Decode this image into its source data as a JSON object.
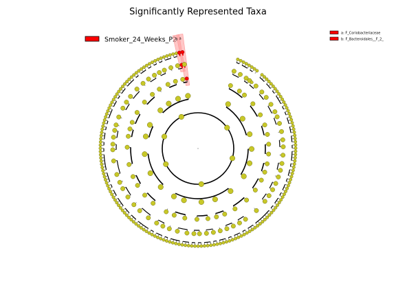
{
  "chart_data": {
    "type": "cladogram",
    "title": "Significantly Represented Taxa",
    "groups": [
      {
        "name": "Smoker_24_Weeks_P2",
        "color": "#ff0000"
      }
    ],
    "clades": [
      {
        "letter": "a",
        "label": "a: F_Coriobacteriaceae",
        "color": "#ff0000"
      },
      {
        "letter": "b",
        "label": "b: F_Bacteroidales__F_2_",
        "color": "#ff0000"
      }
    ],
    "colors": {
      "node": "#c8c828",
      "node_edge": "#555500",
      "highlight": "#ff0000",
      "shade": "#ff9999",
      "line": "#000000"
    },
    "layers": 6,
    "tree": [
      {
        "children": [
          {
            "children": [
              {
                "children": [
                  {
                    "children": [
                      {},
                      {}
                    ]
                  },
                  {
                    "children": [
                      {},
                      {},
                      {}
                    ]
                  }
                ]
              },
              {
                "children": [
                  {
                    "children": [
                      {},
                      {}
                    ]
                  },
                  {
                    "children": [
                      {}
                    ]
                  }
                ]
              },
              {
                "children": [
                  {},
                  {
                    "children": [
                      {},
                      {},
                      {}
                    ]
                  }
                ]
              }
            ]
          },
          {
            "children": [
              {
                "children": [
                  {
                    "children": [
                      {},
                      {},
                      {}
                    ]
                  },
                  {
                    "children": [
                      {},
                      {}
                    ]
                  }
                ]
              },
              {
                "children": [
                  {
                    "children": [
                      {},
                      {},
                      {},
                      {}
                    ]
                  },
                  {
                    "children": [
                      {},
                      {}
                    ]
                  }
                ]
              }
            ]
          },
          {
            "children": [
              {
                "children": [
                  {
                    "children": [
                      {},
                      {}
                    ]
                  },
                  {
                    "children": [
                      {},
                      {},
                      {}
                    ]
                  }
                ]
              },
              {
                "children": [
                  {
                    "children": [
                      {},
                      {},
                      {}
                    ]
                  }
                ]
              }
            ]
          }
        ]
      },
      {
        "children": [
          {
            "children": [
              {
                "children": [
                  {
                    "children": [
                      {},
                      {},
                      {}
                    ]
                  },
                  {
                    "children": [
                      {},
                      {}
                    ]
                  }
                ]
              },
              {
                "children": [
                  {
                    "children": [
                      {},
                      {},
                      {},
                      {}
                    ]
                  }
                ]
              }
            ]
          },
          {
            "children": [
              {
                "children": [
                  {
                    "children": [
                      {},
                      {}
                    ]
                  },
                  {
                    "children": [
                      {},
                      {},
                      {}
                    ]
                  }
                ]
              },
              {
                "children": [
                  {
                    "children": [
                      {},
                      {}
                    ]
                  }
                ]
              }
            ]
          },
          {
            "children": [
              {
                "children": [
                  {
                    "children": [
                      {},
                      {},
                      {}
                    ]
                  },
                  {
                    "children": [
                      {},
                      {}
                    ]
                  }
                ]
              },
              {
                "children": [
                  {
                    "children": [
                      {},
                      {},
                      {}
                    ]
                  },
                  {
                    "children": [
                      {},
                      {}
                    ]
                  }
                ]
              }
            ]
          }
        ]
      },
      {
        "children": [
          {
            "children": [
              {
                "children": [
                  {
                    "children": [
                      {},
                      {},
                      {},
                      {},
                      {},
                      {},
                      {}
                    ]
                  }
                ]
              },
              {
                "children": [
                  {
                    "children": [
                      {},
                      {},
                      {}
                    ]
                  },
                  {
                    "children": [
                      {},
                      {}
                    ]
                  }
                ]
              }
            ]
          },
          {
            "children": [
              {
                "children": [
                  {
                    "children": [
                      {},
                      {},
                      {}
                    ]
                  },
                  {
                    "children": [
                      {},
                      {}
                    ]
                  }
                ]
              },
              {
                "children": [
                  {
                    "children": [
                      {},
                      {},
                      {}
                    ]
                  }
                ]
              }
            ]
          },
          {
            "children": [
              {
                "children": [
                  {
                    "children": [
                      {},
                      {}
                    ]
                  },
                  {
                    "children": [
                      {},
                      {},
                      {}
                    ]
                  }
                ]
              },
              {
                "children": [
                  {
                    "children": [
                      {},
                      {}
                    ]
                  },
                  {
                    "children": [
                      {},
                      {}
                    ]
                  }
                ]
              }
            ]
          },
          {
            "children": [
              {
                "children": [
                  {
                    "children": [
                      {},
                      {},
                      {}
                    ]
                  },
                  {
                    "children": [
                      {},
                      {},
                      {},
                      {}
                    ]
                  }
                ]
              },
              {
                "children": [
                  {
                    "children": [
                      {},
                      {}
                    ]
                  }
                ]
              }
            ]
          },
          {
            "children": [
              {
                "children": [
                  {
                    "children": [
                      {},
                      {},
                      {}
                    ]
                  },
                  {
                    "children": [
                      {},
                      {}
                    ]
                  }
                ]
              }
            ]
          }
        ]
      },
      {
        "children": [
          {
            "children": [
              {
                "children": [
                  {
                    "children": [
                      {},
                      {},
                      {},
                      {},
                      {}
                    ]
                  },
                  {
                    "children": [
                      {},
                      {},
                      {}
                    ]
                  }
                ]
              },
              {
                "children": [
                  {
                    "children": [
                      {},
                      {},
                      {}
                    ]
                  }
                ]
              }
            ]
          },
          {
            "children": [
              {
                "children": [
                  {
                    "children": [
                      {},
                      {},
                      {},
                      {}
                    ]
                  },
                  {
                    "children": [
                      {},
                      {},
                      {}
                    ]
                  }
                ]
              },
              {
                "children": [
                  {
                    "children": [
                      {},
                      {}
                    ]
                  }
                ]
              }
            ]
          },
          {
            "children": [
              {
                "children": [
                  {
                    "children": [
                      {},
                      {},
                      {},
                      {}
                    ]
                  },
                  {
                    "children": [
                      {},
                      {},
                      {},
                      {},
                      {},
                      {}
                    ]
                  }
                ]
              },
              {
                "children": [
                  {
                    "children": [
                      {},
                      {}
                    ]
                  },
                  {
                    "children": [
                      {},
                      {}
                    ]
                  }
                ]
              }
            ]
          }
        ]
      },
      {
        "children": [
          {
            "children": [
              {
                "children": [
                  {
                    "children": [
                      {},
                      {},
                      {}
                    ]
                  },
                  {
                    "children": [
                      {},
                      {}
                    ]
                  }
                ]
              },
              {
                "children": [
                  {
                    "children": [
                      {},
                      {}
                    ]
                  }
                ]
              }
            ]
          },
          {
            "children": [
              {
                "children": [
                  {
                    "children": [
                      {},
                      {},
                      {},
                      {}
                    ]
                  }
                ]
              },
              {
                "children": [
                  {
                    "children": [
                      {},
                      {},
                      {}
                    ]
                  },
                  {
                    "children": [
                      {},
                      {}
                    ]
                  }
                ]
              }
            ]
          }
        ]
      },
      {
        "children": [
          {
            "children": [
              {
                "children": [
                  {
                    "children": [
                      {},
                      {},
                      {}
                    ]
                  },
                  {
                    "children": [
                      {},
                      {},
                      {},
                      {}
                    ]
                  }
                ]
              },
              {
                "children": [
                  {
                    "children": [
                      {},
                      {}
                    ]
                  }
                ]
              }
            ]
          },
          {
            "children": [
              {
                "children": [
                  {
                    "children": [
                      {},
                      {},
                      {}
                    ]
                  },
                  {
                    "children": [
                      {},
                      {}
                    ]
                  }
                ]
              }
            ]
          },
          {
            "children": [
              {
                "children": [
                  {
                    "children": [
                      {},
                      {}
                    ]
                  },
                  {
                    "children": [
                      {},
                      {}
                    ]
                  }
                ]
              },
              {
                "children": [
                  {
                    "children": [
                      {},
                      {},
                      {}
                    ]
                  }
                ]
              }
            ]
          },
          {
            "children": [
              {
                "children": [
                  {
                    "children": [
                      {},
                      {}
                    ]
                  },
                  {
                    "clade": "b",
                    "children": [
                      {
                        "marked": true
                      }
                    ]
                  }
                ]
              },
              {
                "clade": "a",
                "children": [
                  {
                    "children": [
                      {
                        "marked": true
                      }
                    ]
                  }
                ]
              }
            ]
          }
        ]
      }
    ]
  }
}
